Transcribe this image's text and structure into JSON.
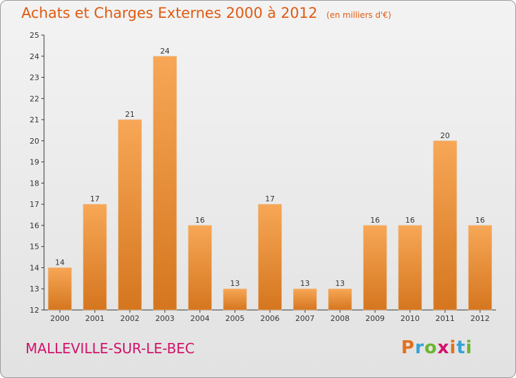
{
  "header": {
    "title": "Achats et Charges Externes 2000 à 2012",
    "unit_note": "(en milliers d'€)"
  },
  "footer": {
    "commune": "MALLEVILLE-SUR-LE-BEC",
    "logo_text": "Proxiti",
    "logo_colors": [
      "#e2711d",
      "#36a2d6",
      "#6bb530",
      "#d2126a",
      "#e2711d",
      "#36a2d6",
      "#6bb530"
    ]
  },
  "colors": {
    "title": "#e05a10",
    "commune": "#d2126a",
    "bar_light": "#f7a756",
    "bar_dark": "#d5761f"
  },
  "chart_data": {
    "type": "bar",
    "title": "Achats et Charges Externes 2000 à 2012",
    "subtitle": "(en milliers d'€)",
    "categories": [
      "2000",
      "2001",
      "2002",
      "2003",
      "2004",
      "2005",
      "2006",
      "2007",
      "2008",
      "2009",
      "2010",
      "2011",
      "2012"
    ],
    "values": [
      14,
      17,
      21,
      24,
      16,
      13,
      17,
      13,
      13,
      16,
      16,
      20,
      16
    ],
    "ylim": [
      12,
      25
    ],
    "yticks": [
      12,
      13,
      14,
      15,
      16,
      17,
      18,
      19,
      20,
      21,
      22,
      23,
      24,
      25
    ],
    "grid": false,
    "data_labels": true
  }
}
